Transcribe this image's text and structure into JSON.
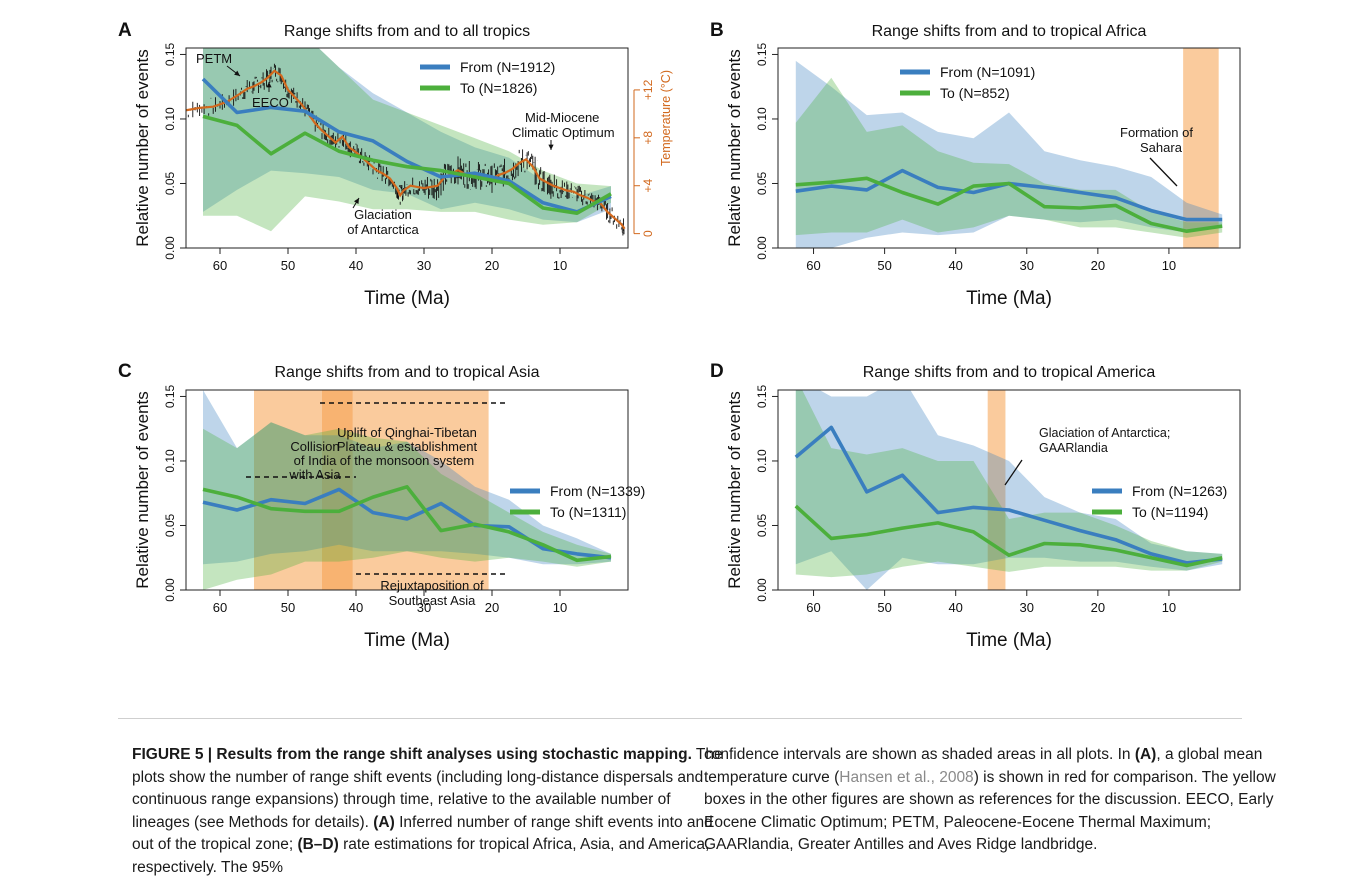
{
  "chart_data": [
    {
      "type": "line",
      "panel_letter": "A",
      "title": "Range shifts from and to all tropics",
      "xlabel": "Time (Ma)",
      "ylabel": "Relative number of events",
      "xlim": [
        65,
        0
      ],
      "ylim": [
        0,
        0.155
      ],
      "xticks": [
        60,
        50,
        40,
        30,
        20,
        10
      ],
      "yticks": [
        0.0,
        0.05,
        0.1,
        0.15
      ],
      "ytick_labels": [
        "0.00",
        "0.05",
        "0.10",
        "0.15"
      ],
      "legend": "top-center",
      "x": [
        62.5,
        57.5,
        52.5,
        47.5,
        42.5,
        37.5,
        32.5,
        27.5,
        22.5,
        17.5,
        12.5,
        7.5,
        2.5
      ],
      "series": [
        {
          "name": "From (N=1912)",
          "color": "#3a7ebf",
          "values": [
            0.131,
            0.105,
            0.109,
            0.106,
            0.09,
            0.083,
            0.067,
            0.055,
            0.058,
            0.052,
            0.035,
            0.028,
            0.04
          ],
          "ci_low": [
            0.028,
            0.045,
            0.06,
            0.058,
            0.055,
            0.045,
            0.042,
            0.03,
            0.035,
            0.03,
            0.022,
            0.02,
            0.03
          ],
          "ci_high": [
            0.165,
            0.165,
            0.165,
            0.165,
            0.14,
            0.12,
            0.105,
            0.09,
            0.078,
            0.07,
            0.052,
            0.04,
            0.048
          ]
        },
        {
          "name": "To (N=1826)",
          "color": "#4caf3c",
          "values": [
            0.102,
            0.095,
            0.073,
            0.089,
            0.075,
            0.068,
            0.063,
            0.06,
            0.055,
            0.05,
            0.031,
            0.027,
            0.042
          ],
          "ci_low": [
            0.025,
            0.025,
            0.013,
            0.04,
            0.036,
            0.03,
            0.03,
            0.028,
            0.028,
            0.022,
            0.018,
            0.02,
            0.035
          ],
          "ci_high": [
            0.165,
            0.165,
            0.165,
            0.165,
            0.14,
            0.115,
            0.105,
            0.095,
            0.085,
            0.075,
            0.06,
            0.05,
            0.048
          ]
        }
      ],
      "secondary_axis": {
        "label": "Temperature (°C)",
        "color": "#d2691e",
        "ticks": [
          0,
          4,
          8,
          12
        ],
        "tick_labels": [
          "0",
          "+4",
          "+8",
          "+12"
        ],
        "range": [
          -1.2,
          15.5
        ],
        "curve_x": [
          65,
          63,
          61,
          59,
          57,
          56,
          55,
          54,
          53,
          52,
          51,
          50,
          49,
          48,
          47,
          46,
          45,
          44,
          43,
          42,
          41,
          40,
          39,
          38,
          37,
          36,
          35,
          34,
          33.5,
          33,
          32,
          31,
          30,
          29,
          28,
          27,
          26,
          25,
          24,
          23,
          22,
          21,
          20,
          19,
          18,
          17,
          16,
          15,
          14,
          13,
          12,
          11,
          10,
          9,
          8,
          7,
          6,
          5,
          4,
          3,
          2,
          1,
          0.5
        ],
        "curve_y": [
          10.3,
          10.5,
          10.6,
          11.0,
          11.7,
          12.1,
          12.3,
          12.6,
          13.0,
          13.6,
          13.2,
          12.0,
          11.4,
          10.8,
          10.0,
          9.2,
          8.6,
          8.1,
          7.6,
          8.1,
          7.2,
          6.8,
          6.3,
          5.8,
          5.3,
          5.0,
          4.6,
          3.8,
          3.2,
          3.6,
          4.0,
          3.9,
          3.8,
          3.9,
          4.0,
          4.7,
          5.0,
          5.3,
          5.0,
          4.8,
          4.9,
          4.7,
          4.6,
          4.9,
          5.1,
          5.4,
          5.9,
          6.2,
          5.6,
          4.6,
          4.3,
          4.0,
          3.8,
          3.6,
          3.5,
          3.2,
          3.0,
          2.7,
          2.5,
          1.8,
          1.3,
          0.8,
          0.4
        ]
      },
      "annotations": [
        {
          "text": "PETM",
          "x": 56
        },
        {
          "text": "EECO",
          "x": 51
        },
        {
          "text": "Mid-Miocene",
          "x": 15
        },
        {
          "text": "Climatic Optimum",
          "x": 15
        },
        {
          "text": "Glaciation",
          "x": 33.5
        },
        {
          "text": "of Antarctica",
          "x": 33.5
        }
      ]
    },
    {
      "type": "line",
      "panel_letter": "B",
      "title": "Range shifts from and to tropical Africa",
      "xlabel": "Time (Ma)",
      "ylabel": "Relative number of events",
      "xlim": [
        65,
        0
      ],
      "ylim": [
        0,
        0.155
      ],
      "xticks": [
        60,
        50,
        40,
        30,
        20,
        10
      ],
      "yticks": [
        0.0,
        0.05,
        0.1,
        0.15
      ],
      "ytick_labels": [
        "0.00",
        "0.05",
        "0.10",
        "0.15"
      ],
      "legend": "top-left",
      "x": [
        62.5,
        57.5,
        52.5,
        47.5,
        42.5,
        37.5,
        32.5,
        27.5,
        22.5,
        17.5,
        12.5,
        7.5,
        2.5
      ],
      "series": [
        {
          "name": "From (N=1091)",
          "color": "#3a7ebf",
          "values": [
            0.044,
            0.048,
            0.045,
            0.06,
            0.047,
            0.043,
            0.05,
            0.047,
            0.043,
            0.039,
            0.029,
            0.022,
            0.022
          ],
          "ci_low": [
            0.0,
            0.0,
            0.008,
            0.012,
            0.01,
            0.012,
            0.025,
            0.022,
            0.02,
            0.022,
            0.016,
            0.012,
            0.016
          ],
          "ci_high": [
            0.145,
            0.125,
            0.103,
            0.105,
            0.09,
            0.085,
            0.105,
            0.075,
            0.068,
            0.063,
            0.055,
            0.035,
            0.026
          ]
        },
        {
          "name": "To (N=852)",
          "color": "#4caf3c",
          "values": [
            0.049,
            0.051,
            0.054,
            0.043,
            0.034,
            0.048,
            0.05,
            0.032,
            0.031,
            0.033,
            0.019,
            0.013,
            0.017
          ],
          "ci_low": [
            0.01,
            0.012,
            0.012,
            0.022,
            0.012,
            0.016,
            0.025,
            0.022,
            0.016,
            0.016,
            0.012,
            0.008,
            0.012
          ],
          "ci_high": [
            0.097,
            0.132,
            0.09,
            0.095,
            0.075,
            0.066,
            0.065,
            0.05,
            0.045,
            0.045,
            0.028,
            0.02,
            0.02
          ]
        }
      ],
      "shaded_regions": [
        {
          "from": 8,
          "to": 3
        }
      ],
      "annotations": [
        {
          "text": "Formation of",
          "x": 14
        },
        {
          "text": "Sahara",
          "x": 14
        }
      ]
    },
    {
      "type": "line",
      "panel_letter": "C",
      "title": "Range shifts from and to tropical Asia",
      "xlabel": "Time (Ma)",
      "ylabel": "Relative number of events",
      "xlim": [
        65,
        0
      ],
      "ylim": [
        0,
        0.155
      ],
      "xticks": [
        60,
        50,
        40,
        30,
        20,
        10
      ],
      "yticks": [
        0.0,
        0.05,
        0.1,
        0.15
      ],
      "ytick_labels": [
        "0.00",
        "0.05",
        "0.10",
        "0.15"
      ],
      "legend": "right",
      "x": [
        62.5,
        57.5,
        52.5,
        47.5,
        42.5,
        37.5,
        32.5,
        27.5,
        22.5,
        17.5,
        12.5,
        7.5,
        2.5
      ],
      "series": [
        {
          "name": "From (N=1339)",
          "color": "#3a7ebf",
          "values": [
            0.068,
            0.062,
            0.07,
            0.067,
            0.078,
            0.06,
            0.055,
            0.067,
            0.05,
            0.049,
            0.032,
            0.028,
            0.025
          ],
          "ci_low": [
            0.02,
            0.022,
            0.028,
            0.03,
            0.035,
            0.03,
            0.03,
            0.03,
            0.028,
            0.025,
            0.02,
            0.02,
            0.022
          ],
          "ci_high": [
            0.155,
            0.11,
            0.13,
            0.12,
            0.12,
            0.11,
            0.115,
            0.1,
            0.08,
            0.07,
            0.05,
            0.04,
            0.028
          ]
        },
        {
          "name": "To (N=1311)",
          "color": "#4caf3c",
          "values": [
            0.078,
            0.072,
            0.063,
            0.061,
            0.061,
            0.072,
            0.08,
            0.046,
            0.051,
            0.045,
            0.035,
            0.023,
            0.026
          ],
          "ci_low": [
            0.0,
            0.008,
            0.012,
            0.022,
            0.022,
            0.025,
            0.03,
            0.025,
            0.022,
            0.025,
            0.022,
            0.018,
            0.022
          ],
          "ci_high": [
            0.125,
            0.11,
            0.13,
            0.12,
            0.125,
            0.118,
            0.115,
            0.09,
            0.075,
            0.06,
            0.045,
            0.035,
            0.028
          ]
        }
      ],
      "shaded_regions": [
        {
          "from": 55,
          "to": 20.5
        },
        {
          "from": 45,
          "to": 40.5
        }
      ],
      "annotations": [
        {
          "text": "Uplift of Qinghai-Tibetan",
          "x": 32.5
        },
        {
          "text": "Plateau & establishment",
          "x": 32.5
        },
        {
          "text": "of the monsoon system",
          "x": 32.5
        },
        {
          "text": "Collision",
          "x": 46
        },
        {
          "text": "of India",
          "x": 46
        },
        {
          "text": "with Asia",
          "x": 46
        },
        {
          "text": "Rejuxtaposition of",
          "x": 30
        },
        {
          "text": "Southeast Asia",
          "x": 30
        }
      ]
    },
    {
      "type": "line",
      "panel_letter": "D",
      "title": "Range shifts from and to tropical America",
      "xlabel": "Time (Ma)",
      "ylabel": "Relative number of events",
      "xlim": [
        65,
        0
      ],
      "ylim": [
        0,
        0.155
      ],
      "xticks": [
        60,
        50,
        40,
        30,
        20,
        10
      ],
      "yticks": [
        0.0,
        0.05,
        0.1,
        0.15
      ],
      "ytick_labels": [
        "0.00",
        "0.05",
        "0.10",
        "0.15"
      ],
      "legend": "right",
      "x": [
        62.5,
        57.5,
        52.5,
        47.5,
        42.5,
        37.5,
        32.5,
        27.5,
        22.5,
        17.5,
        12.5,
        7.5,
        2.5
      ],
      "series": [
        {
          "name": "From (N=1263)",
          "color": "#3a7ebf",
          "values": [
            0.103,
            0.126,
            0.076,
            0.089,
            0.06,
            0.064,
            0.062,
            0.054,
            0.046,
            0.039,
            0.028,
            0.021,
            0.024
          ],
          "ci_low": [
            0.02,
            0.03,
            0.0,
            0.025,
            0.02,
            0.02,
            0.025,
            0.025,
            0.022,
            0.022,
            0.018,
            0.015,
            0.02
          ],
          "ci_high": [
            0.165,
            0.15,
            0.15,
            0.165,
            0.12,
            0.112,
            0.1,
            0.072,
            0.06,
            0.055,
            0.036,
            0.03,
            0.028
          ]
        },
        {
          "name": "To (N=1194)",
          "color": "#4caf3c",
          "values": [
            0.065,
            0.04,
            0.043,
            0.048,
            0.052,
            0.045,
            0.027,
            0.036,
            0.035,
            0.031,
            0.025,
            0.019,
            0.025
          ],
          "ci_low": [
            0.012,
            0.01,
            0.012,
            0.018,
            0.022,
            0.018,
            0.014,
            0.018,
            0.018,
            0.018,
            0.015,
            0.015,
            0.022
          ],
          "ci_high": [
            0.165,
            0.11,
            0.105,
            0.11,
            0.1,
            0.1,
            0.055,
            0.06,
            0.06,
            0.05,
            0.038,
            0.03,
            0.028
          ]
        }
      ],
      "shaded_regions": [
        {
          "from": 35.5,
          "to": 33
        }
      ],
      "annotations": [
        {
          "text": "Glaciation of Antarctica;",
          "x": 31
        },
        {
          "text": "GAARlandia",
          "x": 31
        }
      ]
    }
  ],
  "caption": {
    "label": "FIGURE 5 | Results from the range shift analyses using stochastic mapping.",
    "p1": "The plots show the number of range shift events (including long-distance dispersals and continuous range expansions) through time, relative to the available number of lineages (see Methods for details).",
    "p1_a": "(A)",
    "p1_a_text": "Inferred number of range shift events into and out of the tropical zone;",
    "p1_bd": "(B–D)",
    "p1_bd_text": "rate estimations for tropical Africa, Asia, and America, respectively. The 95%",
    "p2_a": "confidence intervals are shown as shaded areas in all plots. In",
    "p2_a_ref": "(A)",
    "p2_b": ", a global mean temperature curve (",
    "p2_cite": "Hansen et al., 2008",
    "p2_c": ") is shown in red for comparison. The yellow boxes in the other figures are shown as references for the discussion. EECO, Early Eocene Climatic Optimum; PETM, Paleocene-Eocene Thermal Maximum; GAARlandia, Greater Antilles and Aves Ridge landbridge."
  }
}
